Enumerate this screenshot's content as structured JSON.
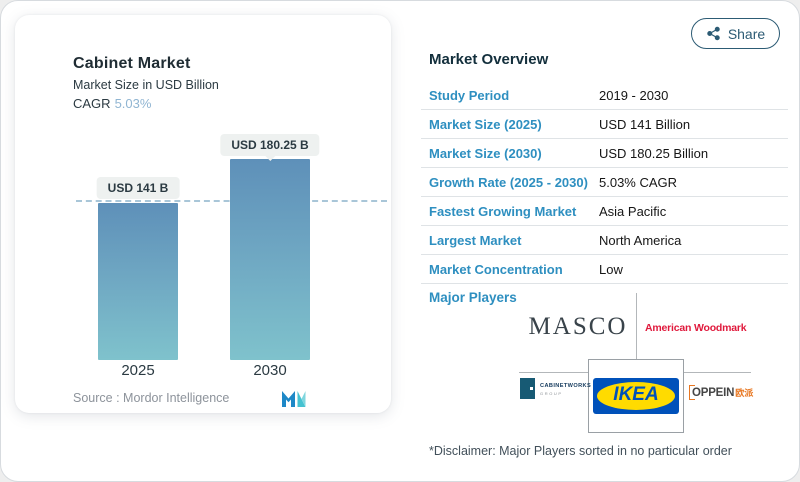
{
  "header": {
    "share_label": "Share",
    "share_icon": "share-nodes"
  },
  "chart_card": {
    "title": "Cabinet Market",
    "subtitle": "Market Size in USD Billion",
    "cagr_label": "CAGR",
    "cagr_value": "5.03%",
    "source_label": "Source :",
    "source_name": "Mordor Intelligence",
    "logo_icon": "mordor-intelligence-logo"
  },
  "chart_data": {
    "type": "bar",
    "title": "Cabinet Market",
    "subtitle": "Market Size in USD Billion",
    "unit": "USD Billion",
    "cagr_percent": 5.03,
    "categories": [
      "2025",
      "2030"
    ],
    "values": [
      141,
      180.25
    ],
    "bar_labels": [
      "USD 141 B",
      "USD 180.25 B"
    ],
    "reference_line_value": 141,
    "ylim": [
      0,
      180.25
    ],
    "grid": false,
    "legend": false,
    "bar_gradient": [
      "#5e90b9",
      "#7fc2cc"
    ],
    "reference_line_color": "#a9c6d8"
  },
  "overview": {
    "title": "Market Overview",
    "rows": [
      {
        "label": "Study Period",
        "value": "2019 - 2030"
      },
      {
        "label": "Market Size (2025)",
        "value": "USD 141 Billion"
      },
      {
        "label": "Market Size (2030)",
        "value": "USD 180.25 Billion"
      },
      {
        "label": "Growth Rate (2025 - 2030)",
        "value": "5.03% CAGR"
      },
      {
        "label": "Fastest Growing Market",
        "value": "Asia Pacific"
      },
      {
        "label": "Largest Market",
        "value": "North America"
      },
      {
        "label": "Market Concentration",
        "value": "Low"
      }
    ],
    "major_players_label": "Major Players",
    "players": {
      "masco": "MASCO",
      "american_woodmark": "American Woodmark",
      "cabinetworks": "CABINETWORKS",
      "cabinetworks_sub": "GROUP",
      "ikea": "IKEA",
      "ikea_reg": "®",
      "oppein": "OPPEIN",
      "oppein_cn": "欧派"
    },
    "disclaimer": "*Disclaimer: Major Players sorted in no particular order"
  },
  "colors": {
    "accent_blue": "#2e8fc0",
    "title_dark": "#132f3c",
    "cagr_value_blue": "#90b5d2",
    "share_teal": "#2c5b74",
    "american_woodmark_red": "#e0193c",
    "masco_dark": "#39434a",
    "cabinetworks_navy": "#175a74",
    "ikea_blue": "#0051ba",
    "ikea_yellow": "#ffdb00",
    "oppein_orange": "#e87722"
  }
}
